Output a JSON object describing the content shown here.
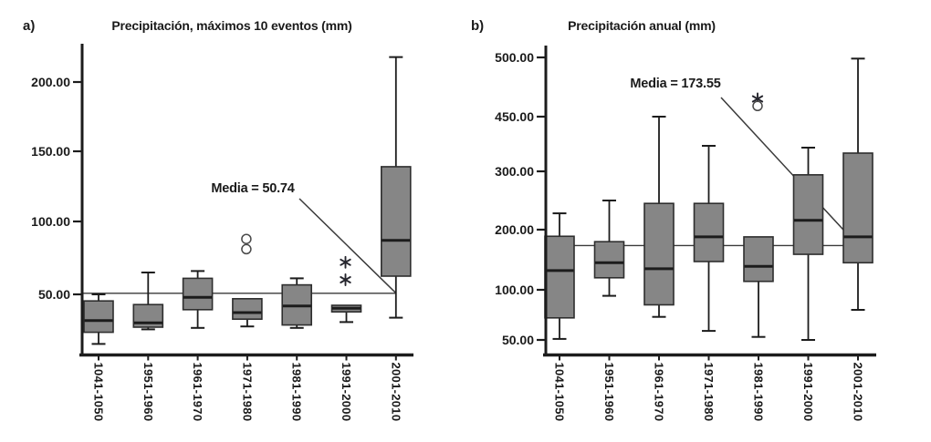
{
  "chart_data": [
    {
      "type": "boxplot",
      "panel": "a)",
      "title": "Precipitación, máximos 10 eventos (mm)",
      "mean_label": "Media = 50.74",
      "mean": 50.74,
      "ylabel": "",
      "xlabel": "",
      "grid": false,
      "y_ticks": [
        {
          "label": "50.00",
          "value": 50
        },
        {
          "label": "100.00",
          "value": 100
        },
        {
          "label": "150.00",
          "value": 150
        },
        {
          "label": "200.00",
          "value": 200
        }
      ],
      "categories": [
        "1041-1050",
        "1951-1960",
        "1961-1970",
        "1971-1980",
        "1981-1990",
        "1991-2000",
        "2001-2010"
      ],
      "boxes": [
        {
          "category": "1041-1050",
          "whisker_low": 16,
          "q1": 24,
          "median": 32,
          "q3": 45.5,
          "whisker_high": 50,
          "outliers": []
        },
        {
          "category": "1951-1960",
          "whisker_low": 26,
          "q1": 27.5,
          "median": 30.5,
          "q3": 43,
          "whisker_high": 65,
          "outliers": []
        },
        {
          "category": "1961-1970",
          "whisker_low": 27,
          "q1": 39.5,
          "median": 48,
          "q3": 61,
          "whisker_high": 66,
          "outliers": []
        },
        {
          "category": "1971-1980",
          "whisker_low": 28,
          "q1": 33,
          "median": 37.5,
          "q3": 47,
          "whisker_high": null,
          "outliers": [
            {
              "marker": "circle",
              "value": 88
            },
            {
              "marker": "circle",
              "value": 81
            }
          ]
        },
        {
          "category": "1981-1990",
          "whisker_low": 27,
          "q1": 29,
          "median": 42,
          "q3": 56.5,
          "whisker_high": 61,
          "outliers": []
        },
        {
          "category": "1991-2000",
          "whisker_low": 31,
          "q1": 38,
          "median": 40.5,
          "q3": 42.5,
          "whisker_high": null,
          "outliers": [
            {
              "marker": "asterisk",
              "value": 72
            },
            {
              "marker": "asterisk",
              "value": 60
            }
          ]
        },
        {
          "category": "2001-2010",
          "whisker_low": 34,
          "q1": 62.5,
          "median": 87,
          "q3": 139,
          "whisker_high": 218,
          "outliers": []
        }
      ]
    },
    {
      "type": "boxplot",
      "panel": "b)",
      "title": "Precipitación anual (mm)",
      "mean_label": "Media = 173.55",
      "mean": 173.55,
      "ylabel": "",
      "xlabel": "",
      "grid": false,
      "y_ticks": [
        {
          "label": "50.00",
          "value": 50
        },
        {
          "label": "100.00",
          "value": 100
        },
        {
          "label": "200.00",
          "value": 200
        },
        {
          "label": "300.00",
          "value": 300
        },
        {
          "label": "450.00",
          "value": 450
        },
        {
          "label": "500.00",
          "value": 500
        }
      ],
      "categories": [
        "1041-1050",
        "1951-1960",
        "1961-1970",
        "1971-1980",
        "1981-1990",
        "1991-2000",
        "2001-2010"
      ],
      "boxes": [
        {
          "category": "1041-1050",
          "whisker_low": 51,
          "q1": 72,
          "median": 132,
          "q3": 189,
          "whisker_high": 228,
          "outliers": []
        },
        {
          "category": "1951-1960",
          "whisker_low": 94,
          "q1": 120,
          "median": 145,
          "q3": 180,
          "whisker_high": 250,
          "outliers": []
        },
        {
          "category": "1961-1970",
          "whisker_low": 73,
          "q1": 85,
          "median": 135,
          "q3": 245,
          "whisker_high": 450,
          "outliers": []
        },
        {
          "category": "1971-1980",
          "whisker_low": 59,
          "q1": 147,
          "median": 188,
          "q3": 245,
          "whisker_high": 370,
          "outliers": []
        },
        {
          "category": "1981-1990",
          "whisker_low": 53,
          "q1": 114,
          "median": 139,
          "q3": 188,
          "whisker_high": null,
          "outliers": [
            {
              "marker": "asterisk",
              "value": 465
            },
            {
              "marker": "circle",
              "value": 459
            }
          ]
        },
        {
          "category": "1991-2000",
          "whisker_low": 50,
          "q1": 159,
          "median": 216,
          "q3": 294,
          "whisker_high": 365,
          "outliers": []
        },
        {
          "category": "2001-2010",
          "whisker_low": 80,
          "q1": 145,
          "median": 188,
          "q3": 350,
          "whisker_high": 499,
          "outliers": []
        }
      ]
    }
  ],
  "style": {
    "box_fill": "#868686",
    "box_stroke": "#2e2e2e",
    "line_color": "#1c1c1c",
    "mean_line_color": "#3a3a3a",
    "background": "#ffffff"
  }
}
